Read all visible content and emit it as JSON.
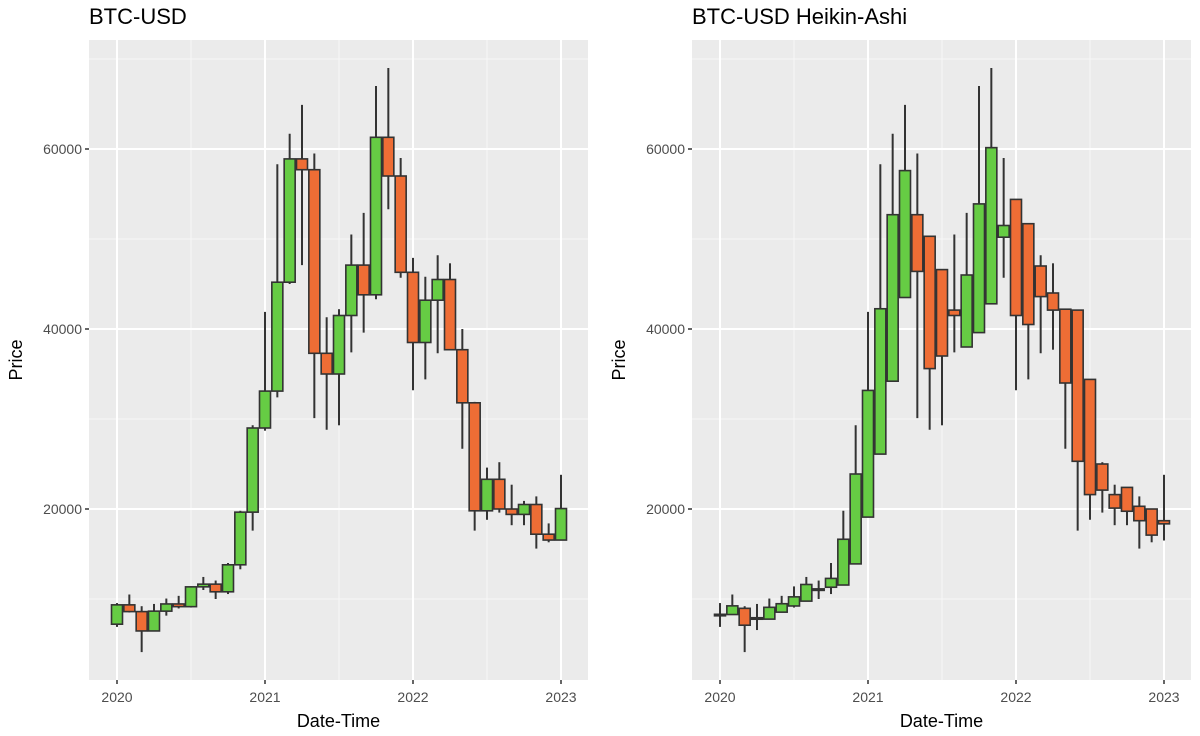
{
  "chart_data": [
    {
      "type": "candlestick",
      "title": "BTC-USD",
      "xlabel": "Date-Time",
      "ylabel": "Price",
      "x_ticks": [
        "2020",
        "2021",
        "2022",
        "2023"
      ],
      "y_ticks": [
        20000,
        40000,
        60000
      ],
      "ylim": [
        3000,
        72000
      ],
      "grid": true,
      "colors": {
        "up": "#66CC44",
        "down": "#EE6D35",
        "outline": "#333333"
      },
      "months": [
        "2020-01",
        "2020-02",
        "2020-03",
        "2020-04",
        "2020-05",
        "2020-06",
        "2020-07",
        "2020-08",
        "2020-09",
        "2020-10",
        "2020-11",
        "2020-12",
        "2021-01",
        "2021-02",
        "2021-03",
        "2021-04",
        "2021-05",
        "2021-06",
        "2021-07",
        "2021-08",
        "2021-09",
        "2021-10",
        "2021-11",
        "2021-12",
        "2022-01",
        "2022-02",
        "2022-03",
        "2022-04",
        "2022-05",
        "2022-06",
        "2022-07",
        "2022-08",
        "2022-09",
        "2022-10",
        "2022-11",
        "2022-12",
        "2023-01"
      ],
      "open": [
        7200,
        9350,
        8600,
        6450,
        8650,
        9450,
        9150,
        11350,
        11650,
        10800,
        13800,
        19650,
        29000,
        33100,
        45200,
        58900,
        57700,
        37300,
        35000,
        41500,
        47100,
        43800,
        61300,
        57000,
        46300,
        38500,
        43200,
        45500,
        37700,
        31800,
        19800,
        23300,
        20000,
        19400,
        20500,
        17200,
        16550
      ],
      "high": [
        9550,
        10500,
        9200,
        9450,
        10050,
        10350,
        11400,
        12450,
        12050,
        14000,
        19800,
        29300,
        41900,
        58300,
        61700,
        64900,
        59500,
        41300,
        42200,
        50500,
        52900,
        67000,
        69000,
        59000,
        47900,
        45800,
        48200,
        47300,
        40000,
        31900,
        24600,
        25200,
        22700,
        20900,
        21400,
        18400,
        23800
      ],
      "low": [
        6900,
        8500,
        4100,
        6550,
        8150,
        8950,
        9050,
        11000,
        10000,
        10550,
        13300,
        17600,
        28700,
        32400,
        45000,
        47100,
        30100,
        28800,
        29300,
        37400,
        39600,
        43300,
        53300,
        45700,
        33200,
        34400,
        37300,
        37700,
        26700,
        17600,
        18800,
        19600,
        18200,
        18200,
        15600,
        16300,
        16500
      ],
      "close": [
        9350,
        8600,
        6450,
        8650,
        9450,
        9150,
        11350,
        11650,
        10800,
        13800,
        19650,
        29000,
        33100,
        45200,
        58900,
        57700,
        37300,
        35000,
        41500,
        47100,
        43800,
        61300,
        57000,
        46300,
        38500,
        43200,
        45500,
        37700,
        31800,
        19800,
        23300,
        20000,
        19400,
        20500,
        17200,
        16550,
        20050
      ]
    },
    {
      "type": "candlestick",
      "title": "BTC-USD Heikin-Ashi",
      "xlabel": "Date-Time",
      "ylabel": "Price",
      "x_ticks": [
        "2020",
        "2021",
        "2022",
        "2023"
      ],
      "y_ticks": [
        20000,
        40000,
        60000
      ],
      "ylim": [
        3000,
        72000
      ],
      "grid": true,
      "colors": {
        "up": "#66CC44",
        "down": "#EE6D35",
        "outline": "#333333"
      },
      "open": [
        8300,
        8275,
        8963,
        7919,
        7763,
        8538,
        9225,
        9763,
        11071,
        11306,
        11553,
        13900,
        19100,
        26100,
        34200,
        43500,
        52700,
        50300,
        46600,
        42100,
        38000,
        39600,
        42800,
        50200,
        54400,
        51700,
        47000,
        44000,
        42200,
        42100,
        34400,
        25000,
        21600,
        22400,
        20300,
        20000,
        18700
      ],
      "high": [
        9550,
        10500,
        9200,
        9450,
        10050,
        10350,
        11400,
        12450,
        12050,
        14000,
        19800,
        29300,
        41900,
        58300,
        61700,
        64900,
        59500,
        46600,
        42200,
        50500,
        52900,
        67000,
        69000,
        59000,
        54400,
        51700,
        48200,
        47300,
        42200,
        42100,
        34400,
        25200,
        22700,
        22400,
        21400,
        20000,
        23800
      ],
      "low": [
        6900,
        8275,
        4100,
        6550,
        7763,
        8538,
        9050,
        9763,
        10000,
        10550,
        11553,
        13900,
        19100,
        26100,
        34200,
        43500,
        30100,
        28800,
        29300,
        37400,
        38000,
        39600,
        42800,
        45700,
        33200,
        34400,
        37300,
        37700,
        26700,
        17600,
        18800,
        19600,
        18200,
        18200,
        15600,
        16300,
        16500
      ],
      "close": [
        8250,
        9238,
        7088,
        7775,
        9075,
        9475,
        10238,
        11613,
        11125,
        12288,
        16638,
        23888,
        33175,
        42250,
        52700,
        57600,
        46400,
        35600,
        37000,
        41500,
        46000,
        53900,
        60150,
        51500,
        41500,
        40500,
        43600,
        42100,
        34000,
        25300,
        21600,
        22100,
        20100,
        19750,
        18700,
        17100,
        18350
      ]
    }
  ],
  "panels": [
    {
      "title": "BTC-USD",
      "xlabel": "Date-Time",
      "ylabel": "Price"
    },
    {
      "title": "BTC-USD Heikin-Ashi",
      "xlabel": "Date-Time",
      "ylabel": "Price"
    }
  ]
}
